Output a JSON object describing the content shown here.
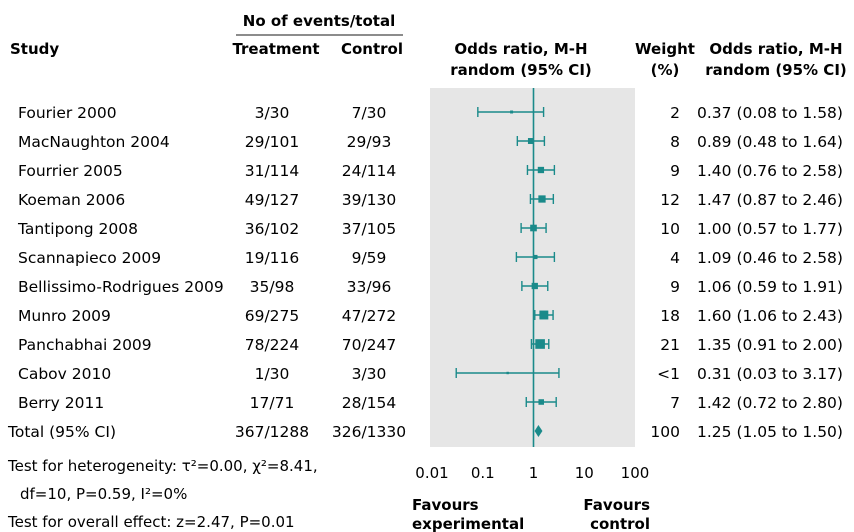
{
  "chart_data": {
    "type": "forest",
    "header": {
      "group_label": "No of events/total",
      "study": "Study",
      "treatment": "Treatment",
      "control": "Control",
      "or_col": [
        "Odds ratio, M-H",
        "random (95% CI)"
      ],
      "weight_col": [
        "Weight",
        "(%)"
      ],
      "or_text_col": [
        "Odds ratio, M-H",
        "random (95% CI)"
      ]
    },
    "studies": [
      {
        "name": "Fourier 2000",
        "treatment": "3/30",
        "control": "7/30",
        "weight": "2",
        "or": 0.37,
        "lo": 0.08,
        "hi": 1.58,
        "label": "0.37 (0.08 to 1.58)"
      },
      {
        "name": "MacNaughton 2004",
        "treatment": "29/101",
        "control": "29/93",
        "weight": "8",
        "or": 0.89,
        "lo": 0.48,
        "hi": 1.64,
        "label": "0.89 (0.48 to 1.64)"
      },
      {
        "name": "Fourrier 2005",
        "treatment": "31/114",
        "control": "24/114",
        "weight": "9",
        "or": 1.4,
        "lo": 0.76,
        "hi": 2.58,
        "label": "1.40 (0.76 to 2.58)"
      },
      {
        "name": "Koeman 2006",
        "treatment": "49/127",
        "control": "39/130",
        "weight": "12",
        "or": 1.47,
        "lo": 0.87,
        "hi": 2.46,
        "label": "1.47 (0.87 to 2.46)"
      },
      {
        "name": "Tantipong 2008",
        "treatment": "36/102",
        "control": "37/105",
        "weight": "10",
        "or": 1.0,
        "lo": 0.57,
        "hi": 1.77,
        "label": "1.00 (0.57 to 1.77)"
      },
      {
        "name": "Scannapieco 2009",
        "treatment": "19/116",
        "control": "9/59",
        "weight": "4",
        "or": 1.09,
        "lo": 0.46,
        "hi": 2.58,
        "label": "1.09 (0.46 to 2.58)"
      },
      {
        "name": "Bellissimo-Rodrigues 2009",
        "treatment": "35/98",
        "control": "33/96",
        "weight": "9",
        "or": 1.06,
        "lo": 0.59,
        "hi": 1.91,
        "label": "1.06 (0.59 to 1.91)"
      },
      {
        "name": "Munro 2009",
        "treatment": "69/275",
        "control": "47/272",
        "weight": "18",
        "or": 1.6,
        "lo": 1.06,
        "hi": 2.43,
        "label": "1.60 (1.06 to 2.43)"
      },
      {
        "name": "Panchabhai 2009",
        "treatment": "78/224",
        "control": "70/247",
        "weight": "21",
        "or": 1.35,
        "lo": 0.91,
        "hi": 2.0,
        "label": "1.35 (0.91 to 2.00)"
      },
      {
        "name": "Cabov 2010",
        "treatment": "1/30",
        "control": "3/30",
        "weight": "<1",
        "or": 0.31,
        "lo": 0.03,
        "hi": 3.17,
        "label": "0.31 (0.03 to 3.17)"
      },
      {
        "name": "Berry 2011",
        "treatment": "17/71",
        "control": "28/154",
        "weight": "7",
        "or": 1.42,
        "lo": 0.72,
        "hi": 2.8,
        "label": "1.42 (0.72 to 2.80)"
      }
    ],
    "total": {
      "name": "Total (95% CI)",
      "treatment": "367/1288",
      "control": "326/1330",
      "weight": "100",
      "or": 1.25,
      "lo": 1.05,
      "hi": 1.5,
      "label": "1.25 (1.05 to 1.50)"
    },
    "heterogeneity": [
      "Test for heterogeneity: τ²=0.00, χ²=8.41,",
      "df=10, P=0.59, I²=0%"
    ],
    "overall_effect": "Test for overall effect: z=2.47, P=0.01",
    "x_scale": "log",
    "xlim": [
      0.01,
      100
    ],
    "x_ticks": [
      {
        "v": 0.01,
        "t": "0.01"
      },
      {
        "v": 0.1,
        "t": "0.1"
      },
      {
        "v": 1,
        "t": "1"
      },
      {
        "v": 10,
        "t": "10"
      },
      {
        "v": 100,
        "t": "100"
      }
    ],
    "favours_left": [
      "Favours",
      "experimental"
    ],
    "favours_right": [
      "Favours",
      "control"
    ],
    "colors": {
      "marker": "#1a8a8a",
      "ref_line": "#1a8a8a",
      "panel": "#e6e6e6",
      "text": "#1a1a1a"
    }
  }
}
